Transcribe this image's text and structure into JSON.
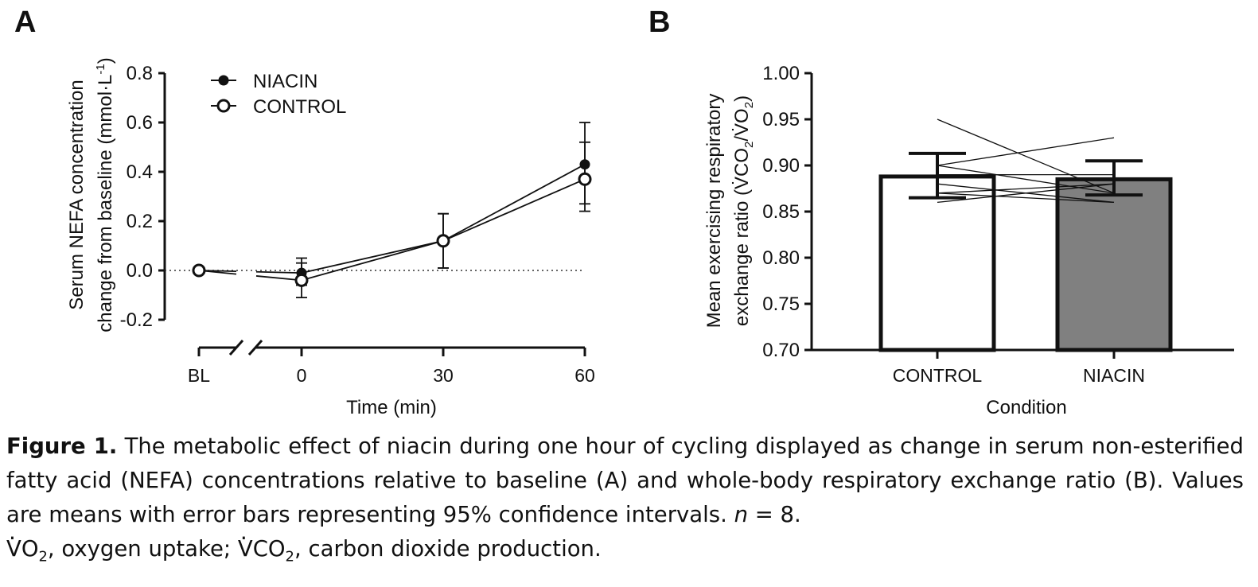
{
  "panel_a_letter": "A",
  "panel_b_letter": "B",
  "chart_data": [
    {
      "type": "line",
      "panel": "A",
      "ylabel_line1": "Serum NEFA concentration",
      "ylabel_line2": "change from baseline (mmol·L",
      "ylabel_sup": "-1",
      "ylabel_close": ")",
      "xlabel": "Time (min)",
      "x_tick_labels": [
        "BL",
        "0",
        "30",
        "60"
      ],
      "y_ticks": [
        0.8,
        0.6,
        0.4,
        0.2,
        0.0,
        -0.2
      ],
      "y_tick_labels": [
        "0.8",
        "0.6",
        "0.4",
        "0.2",
        "0.0",
        "-0.2"
      ],
      "ylim": [
        -0.2,
        0.8
      ],
      "axis_break": true,
      "reference_line": 0.0,
      "legend_position": "top-left",
      "series": [
        {
          "name": "NIACIN",
          "marker": "filled-circle",
          "x": [
            "BL",
            "0",
            "30",
            "60"
          ],
          "values": [
            0.0,
            -0.01,
            0.12,
            0.43
          ],
          "ci_low": [
            0.0,
            -0.06,
            0.01,
            0.27
          ],
          "ci_high": [
            0.0,
            0.05,
            0.23,
            0.6
          ]
        },
        {
          "name": "CONTROL",
          "marker": "open-circle",
          "x": [
            "BL",
            "0",
            "30",
            "60"
          ],
          "values": [
            0.0,
            -0.04,
            0.12,
            0.37
          ],
          "ci_low": [
            0.0,
            -0.11,
            0.01,
            0.24
          ],
          "ci_high": [
            0.0,
            0.03,
            0.23,
            0.52
          ]
        }
      ]
    },
    {
      "type": "bar",
      "panel": "B",
      "ylabel_line1": "Mean exercising respiratory",
      "ylabel_line2": "exchange ratio (",
      "ylabel_vco": "V̇CO",
      "ylabel_sub": "2",
      "ylabel_slash": "/",
      "ylabel_vo": "V̇O",
      "ylabel_sub2": "2",
      "ylabel_close": ")",
      "xlabel": "Condition",
      "categories": [
        "CONTROL",
        "NIACIN"
      ],
      "values": [
        0.888,
        0.885
      ],
      "ci_low": [
        0.865,
        0.868
      ],
      "ci_high": [
        0.913,
        0.905
      ],
      "bar_colors": [
        "#ffffff",
        "#808080"
      ],
      "y_ticks": [
        1.0,
        0.95,
        0.9,
        0.85,
        0.8,
        0.75,
        0.7
      ],
      "y_tick_labels": [
        "1.00",
        "0.95",
        "0.90",
        "0.85",
        "0.80",
        "0.75",
        "0.70"
      ],
      "ylim": [
        0.7,
        1.0
      ],
      "individual_pairs": [
        [
          0.95,
          0.87
        ],
        [
          0.9,
          0.93
        ],
        [
          0.89,
          0.89
        ],
        [
          0.87,
          0.86
        ],
        [
          0.9,
          0.87
        ],
        [
          0.86,
          0.88
        ],
        [
          0.88,
          0.86
        ],
        [
          0.87,
          0.88
        ]
      ]
    }
  ],
  "caption": {
    "label": "Figure 1.",
    "text1": " The metabolic effect of niacin during one hour of cycling displayed as change in serum non-esterified fatty acid (NEFA) concentrations relative to baseline (A) and whole-body respiratory exchange ratio (B). Values are means with error bars representing 95% confidence intervals. ",
    "n_symbol": "n",
    "text2": " = 8.",
    "vo2_letter": "V",
    "vo2_o": "O",
    "vo2_sub": "2",
    "vo2_text": ", oxygen uptake; ",
    "vco2_letter": "V",
    "vco2_co": "CO",
    "vco2_sub": "2",
    "vco2_text": ", carbon dioxide production."
  }
}
